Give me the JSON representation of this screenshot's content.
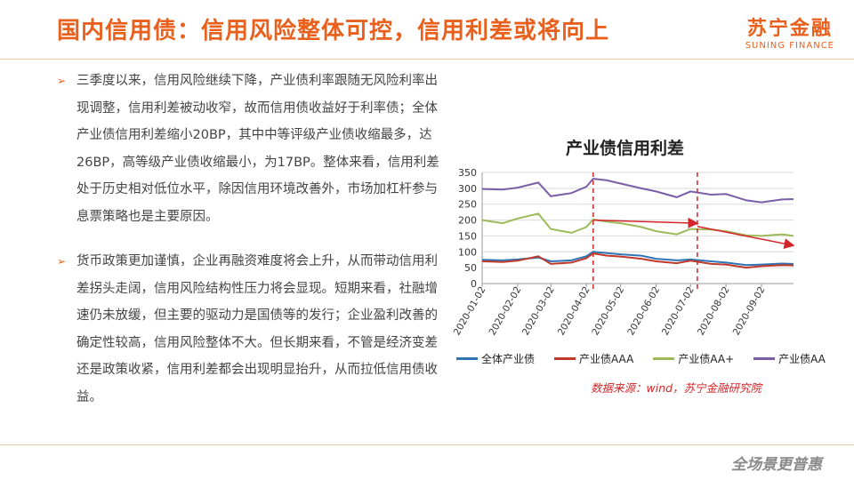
{
  "header": {
    "title": "国内信用债：信用风险整体可控，信用利差或将向上",
    "logo_cn": "苏宁金融",
    "logo_en": "SUNING FINANCE"
  },
  "bullets": [
    {
      "text": "三季度以来，信用风险继续下降，产业债利率跟随无风险利率出现调整，信用利差被动收窄，故而信用债收益好于利率债；全体产业债信用利差缩小20BP，其中中等评级产业债收缩最多，达26BP，高等级产业债收缩最小，为17BP。整体来看，信用利差处于历史相对低位水平，除因信用环境改善外，市场加杠杆参与息票策略也是主要原因。"
    },
    {
      "text": "货币政策更加谨慎，企业再融资难度将会上升，从而带动信用利差拐头走阔，信用风险结构性压力将会显现。短期来看，社融增速仍未放缓，但主要的驱动力是国债等的发行；企业盈利改善的确定性较高，信用风险整体不大。但长期来看，不管是经济变差还是政策收紧，信用利差都会出现明显抬升，从而拉低信用债收益。"
    }
  ],
  "chart_data": {
    "type": "line",
    "title": "产业债信用利差",
    "ylim": [
      0,
      350
    ],
    "yticks": [
      0,
      50,
      100,
      150,
      200,
      250,
      300,
      350
    ],
    "xlim": [
      "2020-01-02",
      "2020-09-30"
    ],
    "xticks": [
      "2020-01-02",
      "2020-02-02",
      "2020-03-02",
      "2020-04-02",
      "2020-05-02",
      "2020-06-02",
      "2020-07-02",
      "2020-08-02",
      "2020-09-02"
    ],
    "grid": true,
    "legend_position": "bottom",
    "series": [
      {
        "name": "全体产业债",
        "color": "#2e75b6",
        "points": [
          [
            "2020-01-02",
            75
          ],
          [
            "2020-01-20",
            73
          ],
          [
            "2020-02-02",
            76
          ],
          [
            "2020-02-20",
            82
          ],
          [
            "2020-03-02",
            70
          ],
          [
            "2020-03-20",
            73
          ],
          [
            "2020-04-02",
            86
          ],
          [
            "2020-04-08",
            100
          ],
          [
            "2020-04-20",
            96
          ],
          [
            "2020-05-02",
            92
          ],
          [
            "2020-05-20",
            88
          ],
          [
            "2020-06-02",
            78
          ],
          [
            "2020-06-20",
            73
          ],
          [
            "2020-07-02",
            76
          ],
          [
            "2020-07-20",
            70
          ],
          [
            "2020-08-02",
            66
          ],
          [
            "2020-08-20",
            58
          ],
          [
            "2020-09-02",
            60
          ],
          [
            "2020-09-20",
            63
          ],
          [
            "2020-09-30",
            62
          ]
        ]
      },
      {
        "name": "产业债AAA",
        "color": "#c0392b",
        "points": [
          [
            "2020-01-02",
            70
          ],
          [
            "2020-01-20",
            68
          ],
          [
            "2020-02-02",
            72
          ],
          [
            "2020-02-20",
            86
          ],
          [
            "2020-03-02",
            62
          ],
          [
            "2020-03-20",
            66
          ],
          [
            "2020-04-02",
            80
          ],
          [
            "2020-04-08",
            95
          ],
          [
            "2020-04-20",
            88
          ],
          [
            "2020-05-02",
            85
          ],
          [
            "2020-05-20",
            78
          ],
          [
            "2020-06-02",
            70
          ],
          [
            "2020-06-20",
            64
          ],
          [
            "2020-07-02",
            72
          ],
          [
            "2020-07-20",
            62
          ],
          [
            "2020-08-02",
            60
          ],
          [
            "2020-08-20",
            50
          ],
          [
            "2020-09-02",
            55
          ],
          [
            "2020-09-20",
            58
          ],
          [
            "2020-09-30",
            57
          ]
        ]
      },
      {
        "name": "产业债AA+",
        "color": "#9bbb59",
        "points": [
          [
            "2020-01-02",
            200
          ],
          [
            "2020-01-20",
            190
          ],
          [
            "2020-02-02",
            205
          ],
          [
            "2020-02-20",
            220
          ],
          [
            "2020-03-02",
            172
          ],
          [
            "2020-03-20",
            160
          ],
          [
            "2020-04-02",
            178
          ],
          [
            "2020-04-08",
            202
          ],
          [
            "2020-04-20",
            195
          ],
          [
            "2020-05-02",
            190
          ],
          [
            "2020-05-20",
            178
          ],
          [
            "2020-06-02",
            165
          ],
          [
            "2020-06-20",
            155
          ],
          [
            "2020-07-02",
            172
          ],
          [
            "2020-07-20",
            170
          ],
          [
            "2020-08-02",
            165
          ],
          [
            "2020-08-20",
            152
          ],
          [
            "2020-09-02",
            150
          ],
          [
            "2020-09-20",
            155
          ],
          [
            "2020-09-30",
            150
          ]
        ]
      },
      {
        "name": "产业债AA",
        "color": "#7b5ea7",
        "points": [
          [
            "2020-01-02",
            298
          ],
          [
            "2020-01-20",
            296
          ],
          [
            "2020-02-02",
            302
          ],
          [
            "2020-02-20",
            318
          ],
          [
            "2020-03-02",
            275
          ],
          [
            "2020-03-20",
            285
          ],
          [
            "2020-04-02",
            305
          ],
          [
            "2020-04-08",
            330
          ],
          [
            "2020-04-20",
            325
          ],
          [
            "2020-05-02",
            315
          ],
          [
            "2020-05-20",
            300
          ],
          [
            "2020-06-02",
            290
          ],
          [
            "2020-06-20",
            272
          ],
          [
            "2020-07-02",
            290
          ],
          [
            "2020-07-20",
            280
          ],
          [
            "2020-08-02",
            282
          ],
          [
            "2020-08-20",
            262
          ],
          [
            "2020-09-02",
            256
          ],
          [
            "2020-09-20",
            265
          ],
          [
            "2020-09-30",
            266
          ]
        ]
      }
    ],
    "vlines": [
      "2020-04-08",
      "2020-07-08"
    ],
    "arrows": [
      {
        "from": [
          "2020-04-08",
          200
        ],
        "to": [
          "2020-07-08",
          190
        ]
      },
      {
        "from": [
          "2020-07-08",
          180
        ],
        "to": [
          "2020-09-30",
          120
        ]
      }
    ],
    "source": "数据来源：wind，苏宁金融研究院"
  },
  "footer": {
    "slogan": "全场景更普惠"
  },
  "colors": {
    "accent": "#e8601c",
    "annotation_red": "#d4262a"
  }
}
